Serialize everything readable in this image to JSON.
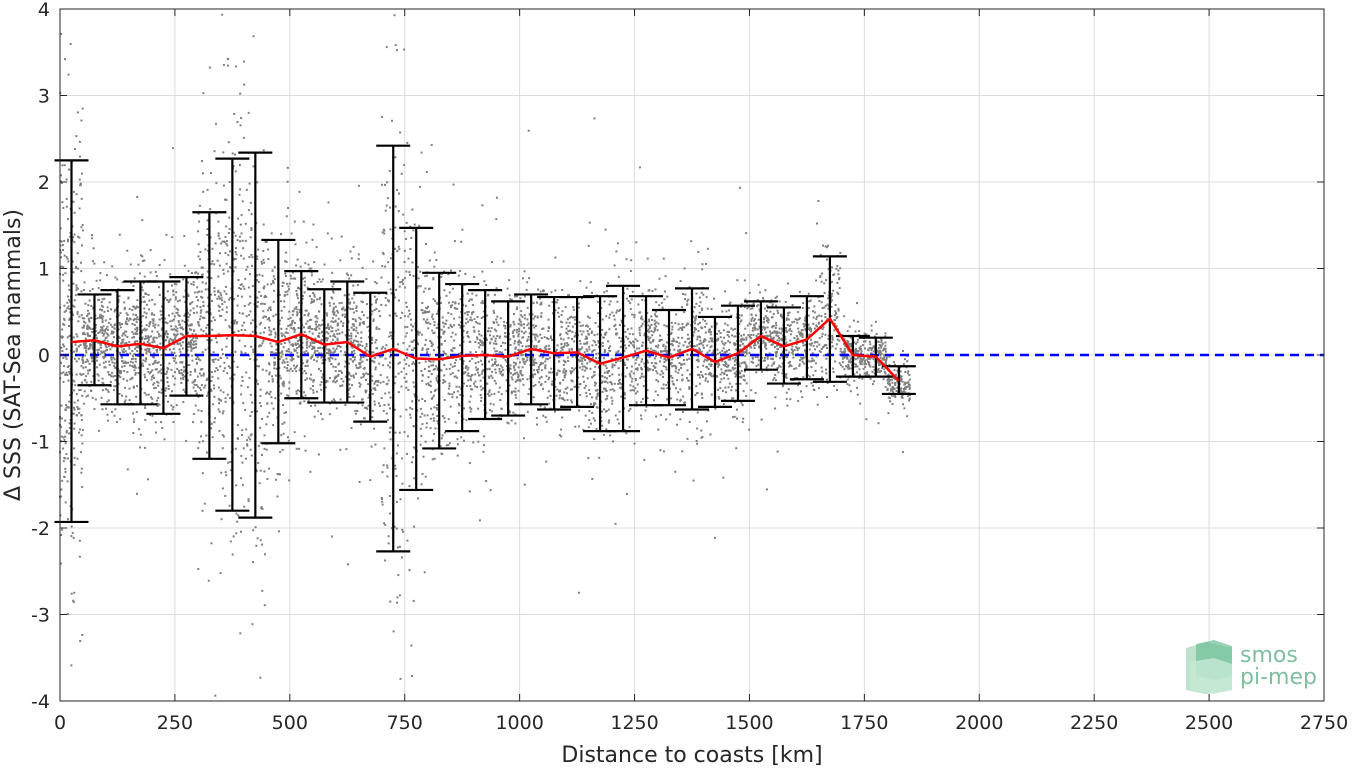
{
  "chart_data": {
    "type": "scatter",
    "title": "",
    "xlabel": "Distance to coasts [km]",
    "ylabel": "Δ SSS (SAT-Sea mammals)",
    "xlim": [
      0,
      2750
    ],
    "ylim": [
      -4,
      4
    ],
    "xticks": [
      0,
      250,
      500,
      750,
      1000,
      1250,
      1500,
      1750,
      2000,
      2250,
      2500,
      2750
    ],
    "yticks": [
      -4,
      -3,
      -2,
      -1,
      0,
      1,
      2,
      3,
      4
    ],
    "xtick_labels": [
      "0",
      "250",
      "500",
      "750",
      "1000",
      "1250",
      "1500",
      "1750",
      "2000",
      "2250",
      "2500",
      "2750"
    ],
    "ytick_labels": [
      "-4",
      "-3",
      "-2",
      "-1",
      "0",
      "1",
      "2",
      "3",
      "4"
    ],
    "grid": true,
    "reference_line": {
      "y": 0,
      "color": "#0000ff",
      "style": "dashed"
    },
    "scatter_color": "#808080",
    "mean_line_color": "#ff0000",
    "errorbar_color": "#000000",
    "binned_stats": {
      "x": [
        25,
        75,
        125,
        175,
        225,
        275,
        325,
        375,
        425,
        475,
        525,
        575,
        625,
        675,
        725,
        775,
        825,
        875,
        925,
        975,
        1025,
        1075,
        1125,
        1175,
        1225,
        1275,
        1325,
        1375,
        1425,
        1475,
        1525,
        1575,
        1625,
        1675,
        1725,
        1775,
        1825
      ],
      "mean": [
        0.15,
        0.17,
        0.1,
        0.13,
        0.08,
        0.22,
        0.22,
        0.23,
        0.22,
        0.15,
        0.24,
        0.12,
        0.15,
        -0.02,
        0.07,
        -0.04,
        -0.05,
        -0.01,
        0.0,
        -0.02,
        0.07,
        0.02,
        0.03,
        -0.1,
        -0.03,
        0.05,
        -0.03,
        0.07,
        -0.08,
        0.02,
        0.22,
        0.1,
        0.18,
        0.42,
        0.0,
        -0.02,
        -0.3
      ],
      "upper": [
        2.25,
        0.7,
        0.75,
        0.85,
        0.85,
        0.9,
        1.65,
        2.27,
        2.34,
        1.33,
        0.97,
        0.76,
        0.85,
        0.72,
        2.42,
        1.47,
        0.95,
        0.82,
        0.75,
        0.62,
        0.7,
        0.67,
        0.67,
        0.68,
        0.8,
        0.68,
        0.52,
        0.77,
        0.44,
        0.57,
        0.62,
        0.55,
        0.68,
        1.14,
        0.22,
        0.2,
        -0.13
      ],
      "lower": [
        -1.93,
        -0.35,
        -0.57,
        -0.57,
        -0.68,
        -0.47,
        -1.2,
        -1.8,
        -1.88,
        -1.02,
        -0.5,
        -0.55,
        -0.55,
        -0.77,
        -2.27,
        -1.56,
        -1.08,
        -0.88,
        -0.74,
        -0.7,
        -0.57,
        -0.63,
        -0.6,
        -0.88,
        -0.88,
        -0.58,
        -0.58,
        -0.63,
        -0.6,
        -0.53,
        -0.17,
        -0.33,
        -0.28,
        -0.31,
        -0.25,
        -0.25,
        -0.45
      ]
    },
    "scatter_summary": {
      "approx_points": 6500,
      "x_range": [
        0,
        1850
      ]
    }
  },
  "logo": {
    "line1": "smos",
    "line2": "pi-mep"
  }
}
